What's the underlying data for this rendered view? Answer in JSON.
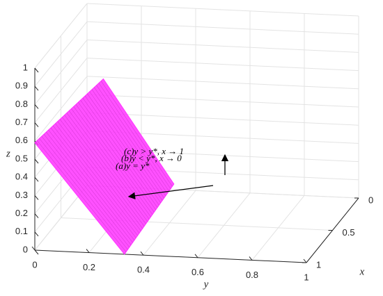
{
  "chart_data": {
    "type": "surface3d",
    "xlabel": "x",
    "ylabel": "y",
    "zlabel": "z",
    "xlim": [
      0,
      1
    ],
    "ylim": [
      0,
      1
    ],
    "zlim": [
      0,
      1
    ],
    "xticks": [
      0,
      0.5,
      1
    ],
    "yticks": [
      0,
      0.2,
      0.4,
      0.6,
      0.8,
      1
    ],
    "zticks": [
      0,
      0.1,
      0.2,
      0.3,
      0.4,
      0.5,
      0.6,
      0.7,
      0.8,
      0.9,
      1
    ],
    "grid": true,
    "surface": {
      "color": "#ff33ff",
      "x": [
        1,
        0,
        0,
        1
      ],
      "y": [
        0,
        0.06,
        0.32,
        0.33
      ],
      "z": [
        0.59,
        0.59,
        0.03,
        0
      ]
    },
    "annotations": [
      "(c)y > y*, x → 1",
      "(b)y < y*, x → 0",
      "(a)y = y*"
    ]
  }
}
